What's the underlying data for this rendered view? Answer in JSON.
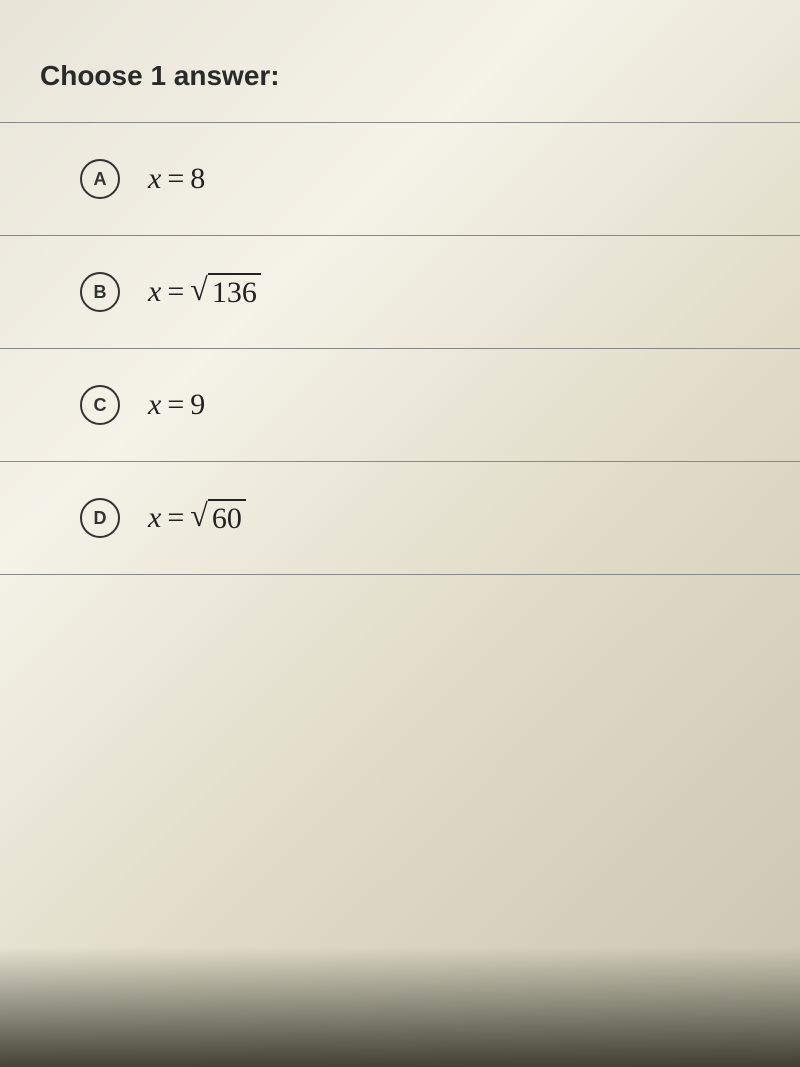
{
  "prompt": "Choose 1 answer:",
  "options": [
    {
      "letter": "A",
      "variable": "x",
      "operator": "=",
      "value": "8",
      "isSqrt": false
    },
    {
      "letter": "B",
      "variable": "x",
      "operator": "=",
      "value": "136",
      "isSqrt": true
    },
    {
      "letter": "C",
      "variable": "x",
      "operator": "=",
      "value": "9",
      "isSqrt": false
    },
    {
      "letter": "D",
      "variable": "x",
      "operator": "=",
      "value": "60",
      "isSqrt": true
    }
  ],
  "styling": {
    "promptFontSize": 28,
    "optionFontSize": 30,
    "circleBorderColor": "#333",
    "dividerColor": "#888",
    "textColor": "#222",
    "backgroundStart": "#e8e4d8",
    "backgroundEnd": "#c8c4b0"
  }
}
